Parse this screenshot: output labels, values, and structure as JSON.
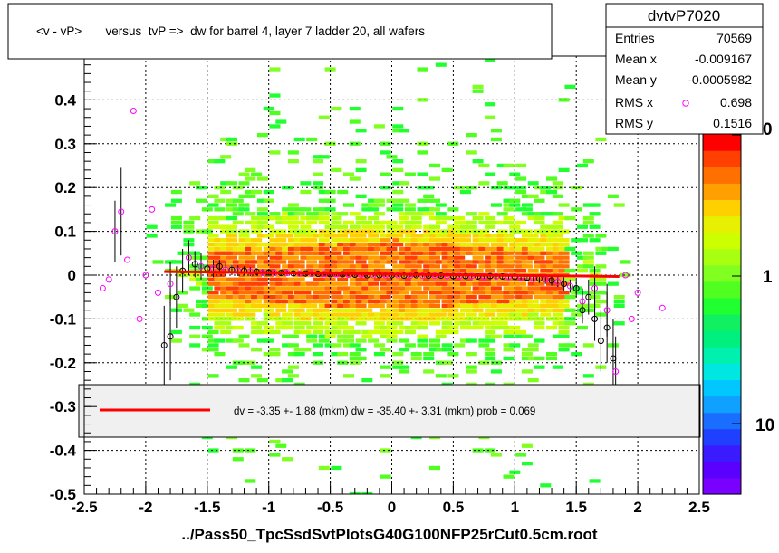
{
  "title": "<v - vP>       versus  tvP =>  dw for barrel 4, layer 7 ladder 20, all wafers",
  "xlabel": "../Pass50_TpcSsdSvtPlotsG40G100NFP25rCut0.5cm.root",
  "stats": {
    "name": "dvtvP7020",
    "rows": [
      {
        "label": "Entries",
        "value": "70569"
      },
      {
        "label": "Mean x",
        "value": "-0.009167"
      },
      {
        "label": "Mean y",
        "value": "-0.0005982"
      },
      {
        "label": "RMS x",
        "value": "0.698"
      },
      {
        "label": "RMS y",
        "value": "0.1516"
      }
    ]
  },
  "fit_legend": "dv =   -3.35 +-  1.88 (mkm) dw =  -35.40 +-  3.31 (mkm) prob = 0.069",
  "palette": {
    "labels": [
      "1",
      "10"
    ],
    "top_label_partial": "0",
    "colors": [
      "#7a00ff",
      "#5a00ff",
      "#3a1aff",
      "#2040ff",
      "#1a6eff",
      "#10a0ff",
      "#00c8ff",
      "#00e6e0",
      "#00f0b0",
      "#00f080",
      "#10f060",
      "#20ff30",
      "#50ff20",
      "#80ff20",
      "#a8ff10",
      "#ccff00",
      "#e6f000",
      "#ffd000",
      "#ffa000",
      "#ff7000",
      "#ff4000",
      "#ff0000"
    ]
  },
  "colors": {
    "fit_line": "#ff0000",
    "profile_black": "#000000",
    "profile_magenta": "#ff00ff",
    "legend_bg": "#f0f0f0"
  },
  "chart_data": {
    "type": "heatmap",
    "xlim": [
      -2.5,
      2.5
    ],
    "ylim": [
      -0.5,
      0.5
    ],
    "x_ticks": [
      "-2.5",
      "-2",
      "-1.5",
      "-1",
      "-0.5",
      "0",
      "0.5",
      "1",
      "1.5",
      "2",
      "2.5"
    ],
    "y_ticks": [
      "-0.5",
      "-0.4",
      "-0.3",
      "-0.2",
      "-0.1",
      "0",
      "0.1",
      "0.2",
      "0.3",
      "0.4"
    ],
    "x_tick_values": [
      -2.5,
      -2,
      -1.5,
      -1,
      -0.5,
      0,
      0.5,
      1,
      1.5,
      2,
      2.5
    ],
    "y_tick_values": [
      -0.5,
      -0.4,
      -0.3,
      -0.2,
      -0.1,
      0,
      0.1,
      0.2,
      0.3,
      0.4
    ],
    "grid": true,
    "z_scale": "log",
    "fit_line": {
      "x": [
        -1.85,
        1.85
      ],
      "y": [
        0.008,
        -0.003
      ]
    },
    "profile_black": [
      {
        "x": -1.85,
        "y": -0.16,
        "err": 0.09
      },
      {
        "x": -1.8,
        "y": -0.14,
        "err": 0.1
      },
      {
        "x": -1.75,
        "y": -0.05,
        "err": 0.07
      },
      {
        "x": -1.7,
        "y": 0.01,
        "err": 0.05
      },
      {
        "x": -1.6,
        "y": 0.025,
        "err": 0.03
      },
      {
        "x": -1.5,
        "y": 0.015,
        "err": 0.02
      },
      {
        "x": -1.4,
        "y": 0.02,
        "err": 0.015
      },
      {
        "x": -1.3,
        "y": 0.012,
        "err": 0.012
      },
      {
        "x": -1.2,
        "y": 0.01,
        "err": 0.01
      },
      {
        "x": -1.1,
        "y": 0.008,
        "err": 0.008
      },
      {
        "x": -1.0,
        "y": 0.006,
        "err": 0.006
      },
      {
        "x": -0.9,
        "y": 0.005,
        "err": 0.005
      },
      {
        "x": -0.8,
        "y": 0.004,
        "err": 0.005
      },
      {
        "x": -0.7,
        "y": 0.004,
        "err": 0.004
      },
      {
        "x": -0.6,
        "y": 0.003,
        "err": 0.004
      },
      {
        "x": -0.5,
        "y": 0.002,
        "err": 0.004
      },
      {
        "x": -0.4,
        "y": 0.002,
        "err": 0.004
      },
      {
        "x": -0.3,
        "y": 0.001,
        "err": 0.004
      },
      {
        "x": -0.2,
        "y": 0.0,
        "err": 0.004
      },
      {
        "x": -0.1,
        "y": 0.0,
        "err": 0.004
      },
      {
        "x": 0.0,
        "y": 0.0,
        "err": 0.004
      },
      {
        "x": 0.1,
        "y": -0.001,
        "err": 0.004
      },
      {
        "x": 0.2,
        "y": 0.0,
        "err": 0.004
      },
      {
        "x": 0.3,
        "y": -0.001,
        "err": 0.004
      },
      {
        "x": 0.4,
        "y": -0.001,
        "err": 0.004
      },
      {
        "x": 0.5,
        "y": -0.002,
        "err": 0.004
      },
      {
        "x": 0.6,
        "y": -0.002,
        "err": 0.005
      },
      {
        "x": 0.7,
        "y": -0.003,
        "err": 0.005
      },
      {
        "x": 0.8,
        "y": -0.002,
        "err": 0.005
      },
      {
        "x": 0.9,
        "y": -0.003,
        "err": 0.006
      },
      {
        "x": 1.0,
        "y": -0.004,
        "err": 0.007
      },
      {
        "x": 1.1,
        "y": -0.006,
        "err": 0.008
      },
      {
        "x": 1.2,
        "y": -0.008,
        "err": 0.01
      },
      {
        "x": 1.3,
        "y": -0.012,
        "err": 0.012
      },
      {
        "x": 1.4,
        "y": -0.02,
        "err": 0.015
      },
      {
        "x": 1.5,
        "y": -0.03,
        "err": 0.02
      },
      {
        "x": 1.55,
        "y": -0.08,
        "err": 0.03
      },
      {
        "x": 1.6,
        "y": -0.05,
        "err": 0.04
      },
      {
        "x": 1.65,
        "y": -0.1,
        "err": 0.05
      },
      {
        "x": 1.7,
        "y": -0.15,
        "err": 0.07
      },
      {
        "x": 1.75,
        "y": -0.12,
        "err": 0.08
      },
      {
        "x": 1.8,
        "y": -0.19,
        "err": 0.09
      }
    ],
    "profile_magenta": [
      {
        "x": -2.35,
        "y": -0.03,
        "err": 0.0
      },
      {
        "x": -2.3,
        "y": -0.01,
        "err": 0.0
      },
      {
        "x": -2.25,
        "y": 0.1,
        "err": 0.07
      },
      {
        "x": -2.2,
        "y": 0.145,
        "err": 0.1
      },
      {
        "x": -2.15,
        "y": 0.035,
        "err": 0.0
      },
      {
        "x": -2.1,
        "y": 0.375,
        "err": 0.0
      },
      {
        "x": -2.05,
        "y": -0.1,
        "err": 0.0
      },
      {
        "x": -2.0,
        "y": 0.0,
        "err": 0.0
      },
      {
        "x": -1.95,
        "y": 0.15,
        "err": 0.0
      },
      {
        "x": -1.9,
        "y": -0.04,
        "err": 0.0
      },
      {
        "x": -1.8,
        "y": -0.02,
        "err": 0.05
      },
      {
        "x": -1.65,
        "y": 0.04,
        "err": 0.04
      },
      {
        "x": -1.55,
        "y": 0.02,
        "err": 0.03
      },
      {
        "x": -1.45,
        "y": 0.015,
        "err": 0.02
      },
      {
        "x": -1.35,
        "y": 0.012,
        "err": 0.015
      },
      {
        "x": -1.25,
        "y": 0.01,
        "err": 0.012
      },
      {
        "x": -1.15,
        "y": 0.008,
        "err": 0.01
      },
      {
        "x": -1.05,
        "y": 0.006,
        "err": 0.008
      },
      {
        "x": -0.95,
        "y": 0.005,
        "err": 0.006
      },
      {
        "x": -0.85,
        "y": 0.005,
        "err": 0.005
      },
      {
        "x": -0.75,
        "y": 0.004,
        "err": 0.005
      },
      {
        "x": -0.65,
        "y": 0.003,
        "err": 0.004
      },
      {
        "x": -0.55,
        "y": 0.003,
        "err": 0.004
      },
      {
        "x": -0.45,
        "y": 0.002,
        "err": 0.004
      },
      {
        "x": -0.35,
        "y": 0.001,
        "err": 0.004
      },
      {
        "x": -0.25,
        "y": 0.001,
        "err": 0.004
      },
      {
        "x": -0.15,
        "y": 0.0,
        "err": 0.004
      },
      {
        "x": -0.05,
        "y": 0.0,
        "err": 0.004
      },
      {
        "x": 0.05,
        "y": 0.0,
        "err": 0.004
      },
      {
        "x": 0.15,
        "y": -0.001,
        "err": 0.004
      },
      {
        "x": 0.25,
        "y": -0.001,
        "err": 0.004
      },
      {
        "x": 0.35,
        "y": -0.001,
        "err": 0.004
      },
      {
        "x": 0.45,
        "y": -0.002,
        "err": 0.004
      },
      {
        "x": 0.55,
        "y": -0.002,
        "err": 0.004
      },
      {
        "x": 0.65,
        "y": -0.002,
        "err": 0.005
      },
      {
        "x": 0.75,
        "y": -0.003,
        "err": 0.005
      },
      {
        "x": 0.85,
        "y": -0.003,
        "err": 0.005
      },
      {
        "x": 0.95,
        "y": -0.004,
        "err": 0.006
      },
      {
        "x": 1.05,
        "y": -0.005,
        "err": 0.007
      },
      {
        "x": 1.15,
        "y": -0.007,
        "err": 0.008
      },
      {
        "x": 1.25,
        "y": -0.01,
        "err": 0.01
      },
      {
        "x": 1.35,
        "y": -0.015,
        "err": 0.012
      },
      {
        "x": 1.45,
        "y": -0.025,
        "err": 0.015
      },
      {
        "x": 1.55,
        "y": -0.06,
        "err": 0.03
      },
      {
        "x": 1.65,
        "y": -0.03,
        "err": 0.05
      },
      {
        "x": 1.75,
        "y": -0.08,
        "err": 0.06
      },
      {
        "x": 1.82,
        "y": -0.22,
        "err": 0.08
      },
      {
        "x": 1.9,
        "y": 0.0,
        "err": 0.0
      },
      {
        "x": 1.95,
        "y": -0.1,
        "err": 0.0
      },
      {
        "x": 2.0,
        "y": -0.04,
        "err": 0.0
      },
      {
        "x": 2.2,
        "y": -0.075,
        "err": 0.0
      }
    ]
  }
}
